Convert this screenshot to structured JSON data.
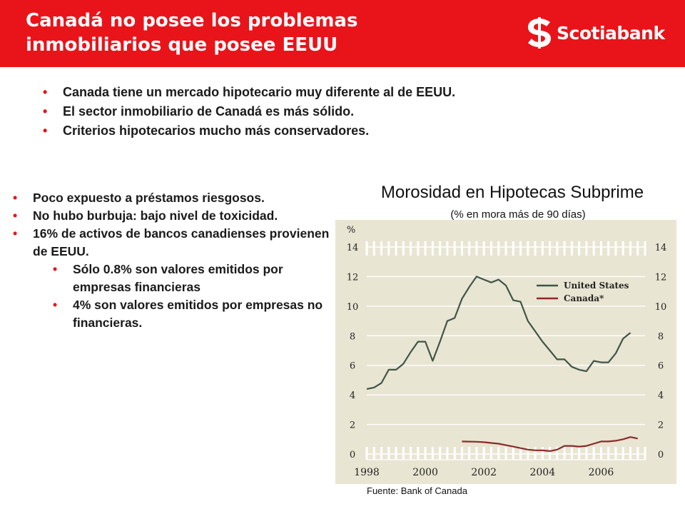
{
  "slide": {
    "title_line1": "Canadá no posee los problemas",
    "title_line2": "inmobiliarios que posee EEUU",
    "brand": "Scotiabank",
    "colors": {
      "header": "#e8141a",
      "bullet": "#e8141a",
      "text": "#1a1a1a"
    }
  },
  "top_bullets": [
    "Canada tiene un mercado hipotecario muy diferente al de EEUU.",
    "El sector inmobiliario de Canadá es más sólido.",
    "Criterios hipotecarios mucho más conservadores."
  ],
  "left_bullets": [
    {
      "text": "Poco expuesto a préstamos riesgosos.",
      "level": 1
    },
    {
      "text": "No hubo burbuja: bajo nivel de toxicidad.",
      "level": 1
    },
    {
      "text": "16% de activos de bancos canadienses provienen de EEUU.",
      "level": 1
    },
    {
      "text": "Sólo 0.8% son valores emitidos por empresas financieras",
      "level": 2
    },
    {
      "text": "4% son valores emitidos por empresas no financieras.",
      "level": 2
    }
  ],
  "bullet_glyph": "•",
  "chart_data": {
    "type": "line",
    "title": "Morosidad en Hipotecas Subprime",
    "subtitle": "(% en mora más de 90 días)",
    "ylabel": "%",
    "ylim": [
      0,
      14
    ],
    "yticks": [
      "0",
      "2",
      "4",
      "6",
      "8",
      "10",
      "12",
      "14"
    ],
    "xlim": [
      1998,
      2007.5
    ],
    "xticks": [
      "1998",
      "2000",
      "2002",
      "2004",
      "2006"
    ],
    "grid": true,
    "background": "#e9e5d3",
    "legend_position": "top-right",
    "series": [
      {
        "name": "United States",
        "color": "#3f5548",
        "x": [
          1998.0,
          1998.25,
          1998.5,
          1998.75,
          1999.0,
          1999.25,
          1999.5,
          1999.75,
          2000.0,
          2000.25,
          2000.5,
          2000.75,
          2001.0,
          2001.25,
          2001.5,
          2001.75,
          2002.0,
          2002.25,
          2002.5,
          2002.75,
          2003.0,
          2003.25,
          2003.5,
          2003.75,
          2004.0,
          2004.25,
          2004.5,
          2004.75,
          2005.0,
          2005.25,
          2005.5,
          2005.75,
          2006.0,
          2006.25,
          2006.5,
          2006.75,
          2007.0
        ],
        "values": [
          4.4,
          4.5,
          4.8,
          5.7,
          5.7,
          6.1,
          6.9,
          7.6,
          7.6,
          6.3,
          7.6,
          9.0,
          9.2,
          10.5,
          11.3,
          12.0,
          11.8,
          11.6,
          11.8,
          11.4,
          10.4,
          10.3,
          9.0,
          8.3,
          7.6,
          7.0,
          6.4,
          6.4,
          5.9,
          5.7,
          5.6,
          6.3,
          6.2,
          6.2,
          6.8,
          7.8,
          8.2
        ]
      },
      {
        "name": "Canada*",
        "color": "#8b2a2a",
        "x": [
          2001.25,
          2001.5,
          2001.75,
          2002.0,
          2002.25,
          2002.5,
          2002.75,
          2003.0,
          2003.25,
          2003.5,
          2003.75,
          2004.0,
          2004.25,
          2004.5,
          2004.75,
          2005.0,
          2005.25,
          2005.5,
          2005.75,
          2006.0,
          2006.25,
          2006.5,
          2006.75,
          2007.0,
          2007.25
        ],
        "values": [
          0.85,
          0.84,
          0.83,
          0.8,
          0.75,
          0.7,
          0.6,
          0.5,
          0.4,
          0.3,
          0.25,
          0.25,
          0.2,
          0.3,
          0.55,
          0.55,
          0.5,
          0.55,
          0.7,
          0.85,
          0.85,
          0.9,
          1.0,
          1.15,
          1.05
        ]
      }
    ],
    "source": "Fuente: Bank of Canada"
  }
}
